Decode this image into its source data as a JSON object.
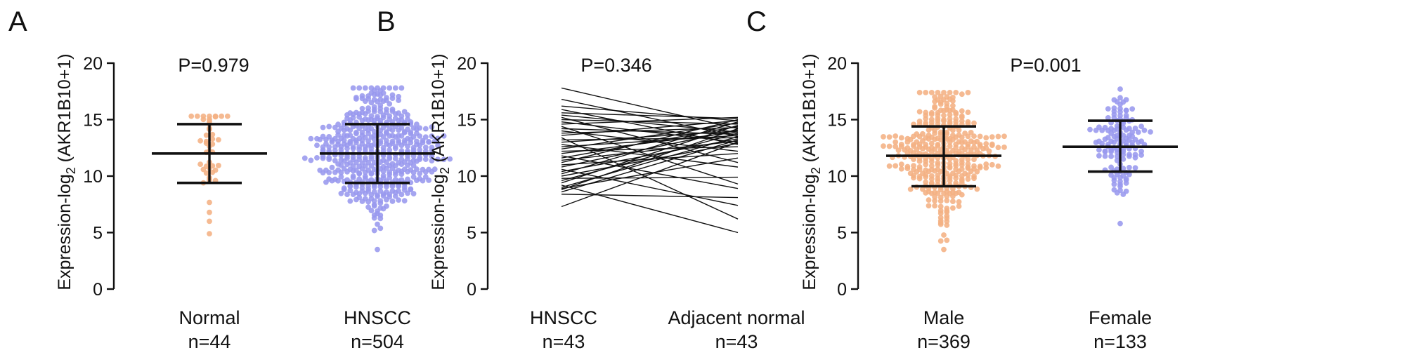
{
  "chart_data": [
    {
      "type": "scatter",
      "panel": "A",
      "ylabel": "Expression-log2 (AKR1B10+1)",
      "ylabel_base": "Expression-log",
      "ylabel_sub": "2",
      "ylabel_rest": " (AKR1B10+1)",
      "ylim": [
        0,
        20
      ],
      "yticks": [
        0,
        5,
        10,
        15,
        20
      ],
      "annotation": "P=0.979",
      "categories": [
        {
          "label": "Normal",
          "n": "n=44",
          "count": 44,
          "color": "#F4B183",
          "mean": 12.0,
          "sd_low": 9.4,
          "sd_high": 14.6,
          "min": 4.9,
          "max": 15.3
        },
        {
          "label": "HNSCC",
          "n": "n=504",
          "count": 504,
          "color": "#9999EE",
          "mean": 12.0,
          "sd_low": 9.4,
          "sd_high": 14.6,
          "min": 3.5,
          "max": 17.8
        }
      ]
    },
    {
      "type": "line",
      "panel": "B",
      "ylabel": "Expression-log2 (AKR1B10+1)",
      "ylabel_base": "Expression-log",
      "ylabel_sub": "2",
      "ylabel_rest": " (AKR1B10+1)",
      "ylim": [
        0,
        20
      ],
      "yticks": [
        0,
        5,
        10,
        15,
        20
      ],
      "annotation": "P=0.346",
      "categories": [
        {
          "label": "HNSCC",
          "n": "n=43"
        },
        {
          "label": "Adjacent normal",
          "n": "n=43"
        }
      ],
      "pairs": [
        [
          17.8,
          14.2
        ],
        [
          16.8,
          13.5
        ],
        [
          16.2,
          14.9
        ],
        [
          15.9,
          12.8
        ],
        [
          15.6,
          15.1
        ],
        [
          15.4,
          13.9
        ],
        [
          15.2,
          11.2
        ],
        [
          15.0,
          14.6
        ],
        [
          14.8,
          13.0
        ],
        [
          14.6,
          15.2
        ],
        [
          14.4,
          9.3
        ],
        [
          14.2,
          13.7
        ],
        [
          14.0,
          12.2
        ],
        [
          13.8,
          14.3
        ],
        [
          13.6,
          14.9
        ],
        [
          13.4,
          6.2
        ],
        [
          13.2,
          13.4
        ],
        [
          13.0,
          14.0
        ],
        [
          12.8,
          10.8
        ],
        [
          12.6,
          13.6
        ],
        [
          12.4,
          14.7
        ],
        [
          12.2,
          12.6
        ],
        [
          12.0,
          13.9
        ],
        [
          11.8,
          8.9
        ],
        [
          11.6,
          14.4
        ],
        [
          11.4,
          13.1
        ],
        [
          11.2,
          15.0
        ],
        [
          11.0,
          12.0
        ],
        [
          10.8,
          14.1
        ],
        [
          10.6,
          7.4
        ],
        [
          10.4,
          13.3
        ],
        [
          10.2,
          14.8
        ],
        [
          10.0,
          12.9
        ],
        [
          9.8,
          9.9
        ],
        [
          9.6,
          13.8
        ],
        [
          9.4,
          14.5
        ],
        [
          9.2,
          5.0
        ],
        [
          9.0,
          13.5
        ],
        [
          8.9,
          11.6
        ],
        [
          8.8,
          14.2
        ],
        [
          8.6,
          13.2
        ],
        [
          8.4,
          8.1
        ],
        [
          7.3,
          13.0
        ]
      ]
    },
    {
      "type": "scatter",
      "panel": "C",
      "ylabel": "Expression-log2 (AKR1B10+1)",
      "ylabel_base": "Expression-log",
      "ylabel_sub": "2",
      "ylabel_rest": " (AKR1B10+1)",
      "ylim": [
        0,
        20
      ],
      "yticks": [
        0,
        5,
        10,
        15,
        20
      ],
      "annotation": "P=0.001",
      "categories": [
        {
          "label": "Male",
          "n": "n=369",
          "count": 369,
          "color": "#F4B183",
          "mean": 11.8,
          "sd_low": 9.1,
          "sd_high": 14.4,
          "min": 3.5,
          "max": 17.4
        },
        {
          "label": "Female",
          "n": "n=133",
          "count": 133,
          "color": "#9999EE",
          "mean": 12.6,
          "sd_low": 10.4,
          "sd_high": 14.9,
          "min": 5.8,
          "max": 17.7
        }
      ]
    }
  ]
}
